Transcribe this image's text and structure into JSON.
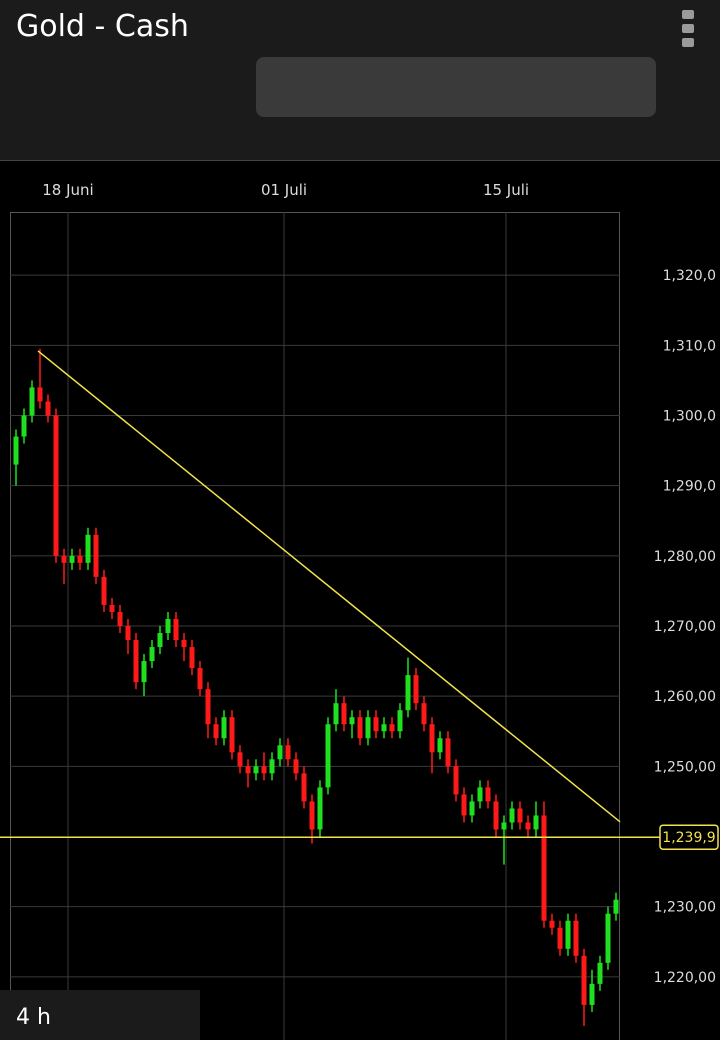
{
  "header": {
    "title": "Gold - Cash"
  },
  "timeframe": "4 h",
  "chart_data": {
    "type": "candlestick",
    "x": [
      0,
      1,
      2,
      3,
      4,
      5,
      6,
      7,
      8,
      9,
      10,
      11,
      12,
      13,
      14,
      15,
      16,
      17,
      18,
      19,
      20,
      21,
      22,
      23,
      24,
      25,
      26,
      27,
      28,
      29,
      30,
      31,
      32,
      33,
      34,
      35,
      36,
      37,
      38,
      39,
      40,
      41,
      42,
      43,
      44,
      45,
      46,
      47,
      48,
      49,
      50,
      51,
      52,
      53,
      54,
      55,
      56,
      57,
      58,
      59,
      60,
      61,
      62,
      63,
      64,
      65,
      66,
      67,
      68,
      69,
      70,
      71,
      72,
      73,
      74,
      75
    ],
    "open": [
      1293,
      1297,
      1300,
      1304,
      1302,
      1300,
      1280,
      1279,
      1280,
      1279,
      1283,
      1277,
      1273,
      1272,
      1270,
      1268,
      1262,
      1265,
      1267,
      1269,
      1271,
      1268,
      1267,
      1264,
      1261,
      1256,
      1254,
      1257,
      1252,
      1250,
      1249,
      1250,
      1249,
      1251,
      1253,
      1251,
      1249,
      1245,
      1241,
      1247,
      1256,
      1259,
      1256,
      1257,
      1254,
      1257,
      1255,
      1256,
      1255,
      1258,
      1263,
      1259,
      1256,
      1252,
      1254,
      1250,
      1246,
      1243,
      1245,
      1247,
      1245,
      1241,
      1242,
      1244,
      1242,
      1241,
      1243,
      1228,
      1227,
      1224,
      1228,
      1223,
      1216,
      1219,
      1222,
      1229
    ],
    "high": [
      1298,
      1301,
      1305,
      1309.5,
      1303,
      1301,
      1281,
      1281,
      1281,
      1284,
      1284,
      1278,
      1274,
      1273,
      1271,
      1269,
      1266,
      1268,
      1270,
      1272,
      1272,
      1269,
      1268,
      1265,
      1262,
      1257,
      1258,
      1258,
      1253,
      1251,
      1251,
      1252,
      1252,
      1254,
      1254,
      1252,
      1250,
      1246,
      1248,
      1257,
      1261,
      1260,
      1258,
      1258,
      1258,
      1258,
      1257,
      1257,
      1259,
      1265.5,
      1264,
      1260,
      1257,
      1255,
      1255,
      1251,
      1247,
      1246,
      1248,
      1248,
      1246,
      1243,
      1245,
      1245,
      1243,
      1245,
      1245,
      1229,
      1228,
      1229,
      1229,
      1224,
      1221,
      1223,
      1230,
      1232
    ],
    "low": [
      1290,
      1296,
      1299,
      1301,
      1299,
      1279,
      1276,
      1278,
      1278,
      1278,
      1276,
      1272,
      1271,
      1269,
      1266,
      1261,
      1260,
      1264,
      1266,
      1268,
      1267,
      1265,
      1263,
      1260,
      1254,
      1253,
      1253,
      1251,
      1249,
      1247,
      1248,
      1248,
      1248,
      1250,
      1250,
      1248,
      1244,
      1239,
      1240,
      1246,
      1255,
      1255,
      1254,
      1253,
      1253,
      1254,
      1254,
      1254,
      1254,
      1257,
      1258,
      1255,
      1249,
      1251,
      1249,
      1245,
      1242,
      1242,
      1244,
      1244,
      1240,
      1236,
      1241,
      1241,
      1240,
      1240,
      1227,
      1226,
      1223,
      1223,
      1222,
      1213,
      1215,
      1218,
      1221,
      1228
    ],
    "close": [
      1297,
      1300,
      1304,
      1302,
      1300,
      1280,
      1279,
      1280,
      1279,
      1283,
      1277,
      1273,
      1272,
      1270,
      1268,
      1262,
      1265,
      1267,
      1269,
      1271,
      1268,
      1267,
      1264,
      1261,
      1256,
      1254,
      1257,
      1252,
      1250,
      1249,
      1250,
      1249,
      1251,
      1253,
      1251,
      1249,
      1245,
      1241,
      1247,
      1256,
      1259,
      1256,
      1257,
      1254,
      1257,
      1255,
      1256,
      1255,
      1258,
      1263,
      1259,
      1256,
      1252,
      1254,
      1250,
      1246,
      1243,
      1245,
      1247,
      1245,
      1241,
      1242,
      1244,
      1242,
      1241,
      1243,
      1228,
      1227,
      1224,
      1228,
      1223,
      1216,
      1219,
      1222,
      1229,
      1231
    ],
    "up_color": "#1fe01f",
    "down_color": "#ff1a1a",
    "xlim": [
      -0.5,
      75.5
    ],
    "xticks": [
      {
        "value": 6.5,
        "label": "18 Juni"
      },
      {
        "value": 33.5,
        "label": "01 Juli"
      },
      {
        "value": 61.25,
        "label": "15 Juli"
      }
    ],
    "ylim": [
      1211,
      1329
    ],
    "yticks": [
      {
        "value": 1220,
        "label": "1,220,00"
      },
      {
        "value": 1230,
        "label": "1,230,00"
      },
      {
        "value": 1250,
        "label": "1,250,00"
      },
      {
        "value": 1260,
        "label": "1,260,00"
      },
      {
        "value": 1270,
        "label": "1,270,00"
      },
      {
        "value": 1280,
        "label": "1,280,00"
      },
      {
        "value": 1290,
        "label": "1,290,0"
      },
      {
        "value": 1300,
        "label": "1,300,0"
      },
      {
        "value": 1310,
        "label": "1,310,0"
      },
      {
        "value": 1320,
        "label": "1,320,0"
      }
    ],
    "grid": true,
    "trendline": {
      "x": [
        2.75,
        75.5
      ],
      "y": [
        1309.2,
        1242.1
      ],
      "color": "#f2e34a"
    },
    "price_line": {
      "value": 1239.9,
      "label": "1,239,9",
      "color": "#f2e34a"
    }
  }
}
